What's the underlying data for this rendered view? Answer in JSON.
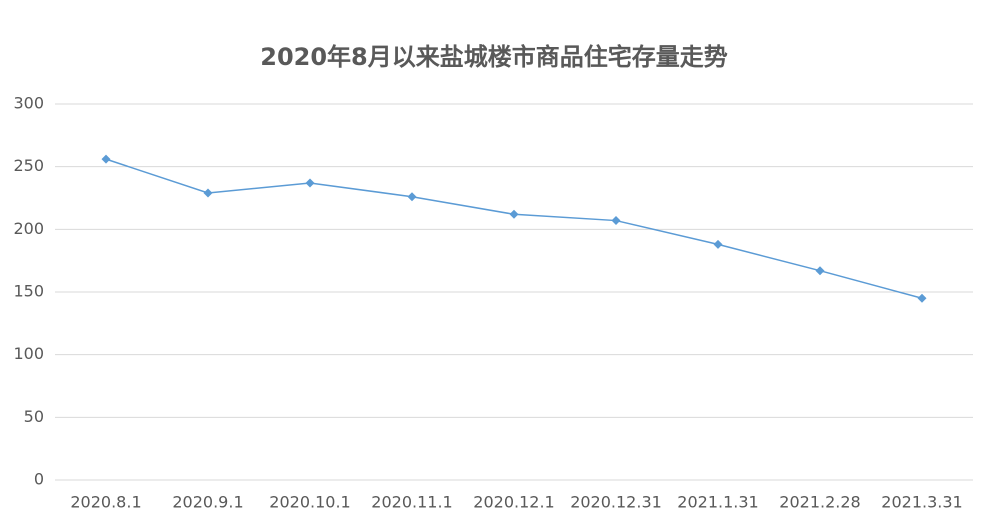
{
  "chart_data": {
    "type": "line",
    "title": "2020年8月以来盐城楼市商品住宅存量走势",
    "categories": [
      "2020.8.1",
      "2020.9.1",
      "2020.10.1",
      "2020.11.1",
      "2020.12.1",
      "2020.12.31",
      "2021.1.31",
      "2021.2.28",
      "2021.3.31"
    ],
    "values": [
      256,
      229,
      237,
      226,
      212,
      207,
      188,
      167,
      145
    ],
    "color": "#5b9bd5",
    "ylim": [
      0,
      300
    ],
    "yticks": [
      0,
      50,
      100,
      150,
      200,
      250,
      300
    ],
    "grid": true
  }
}
